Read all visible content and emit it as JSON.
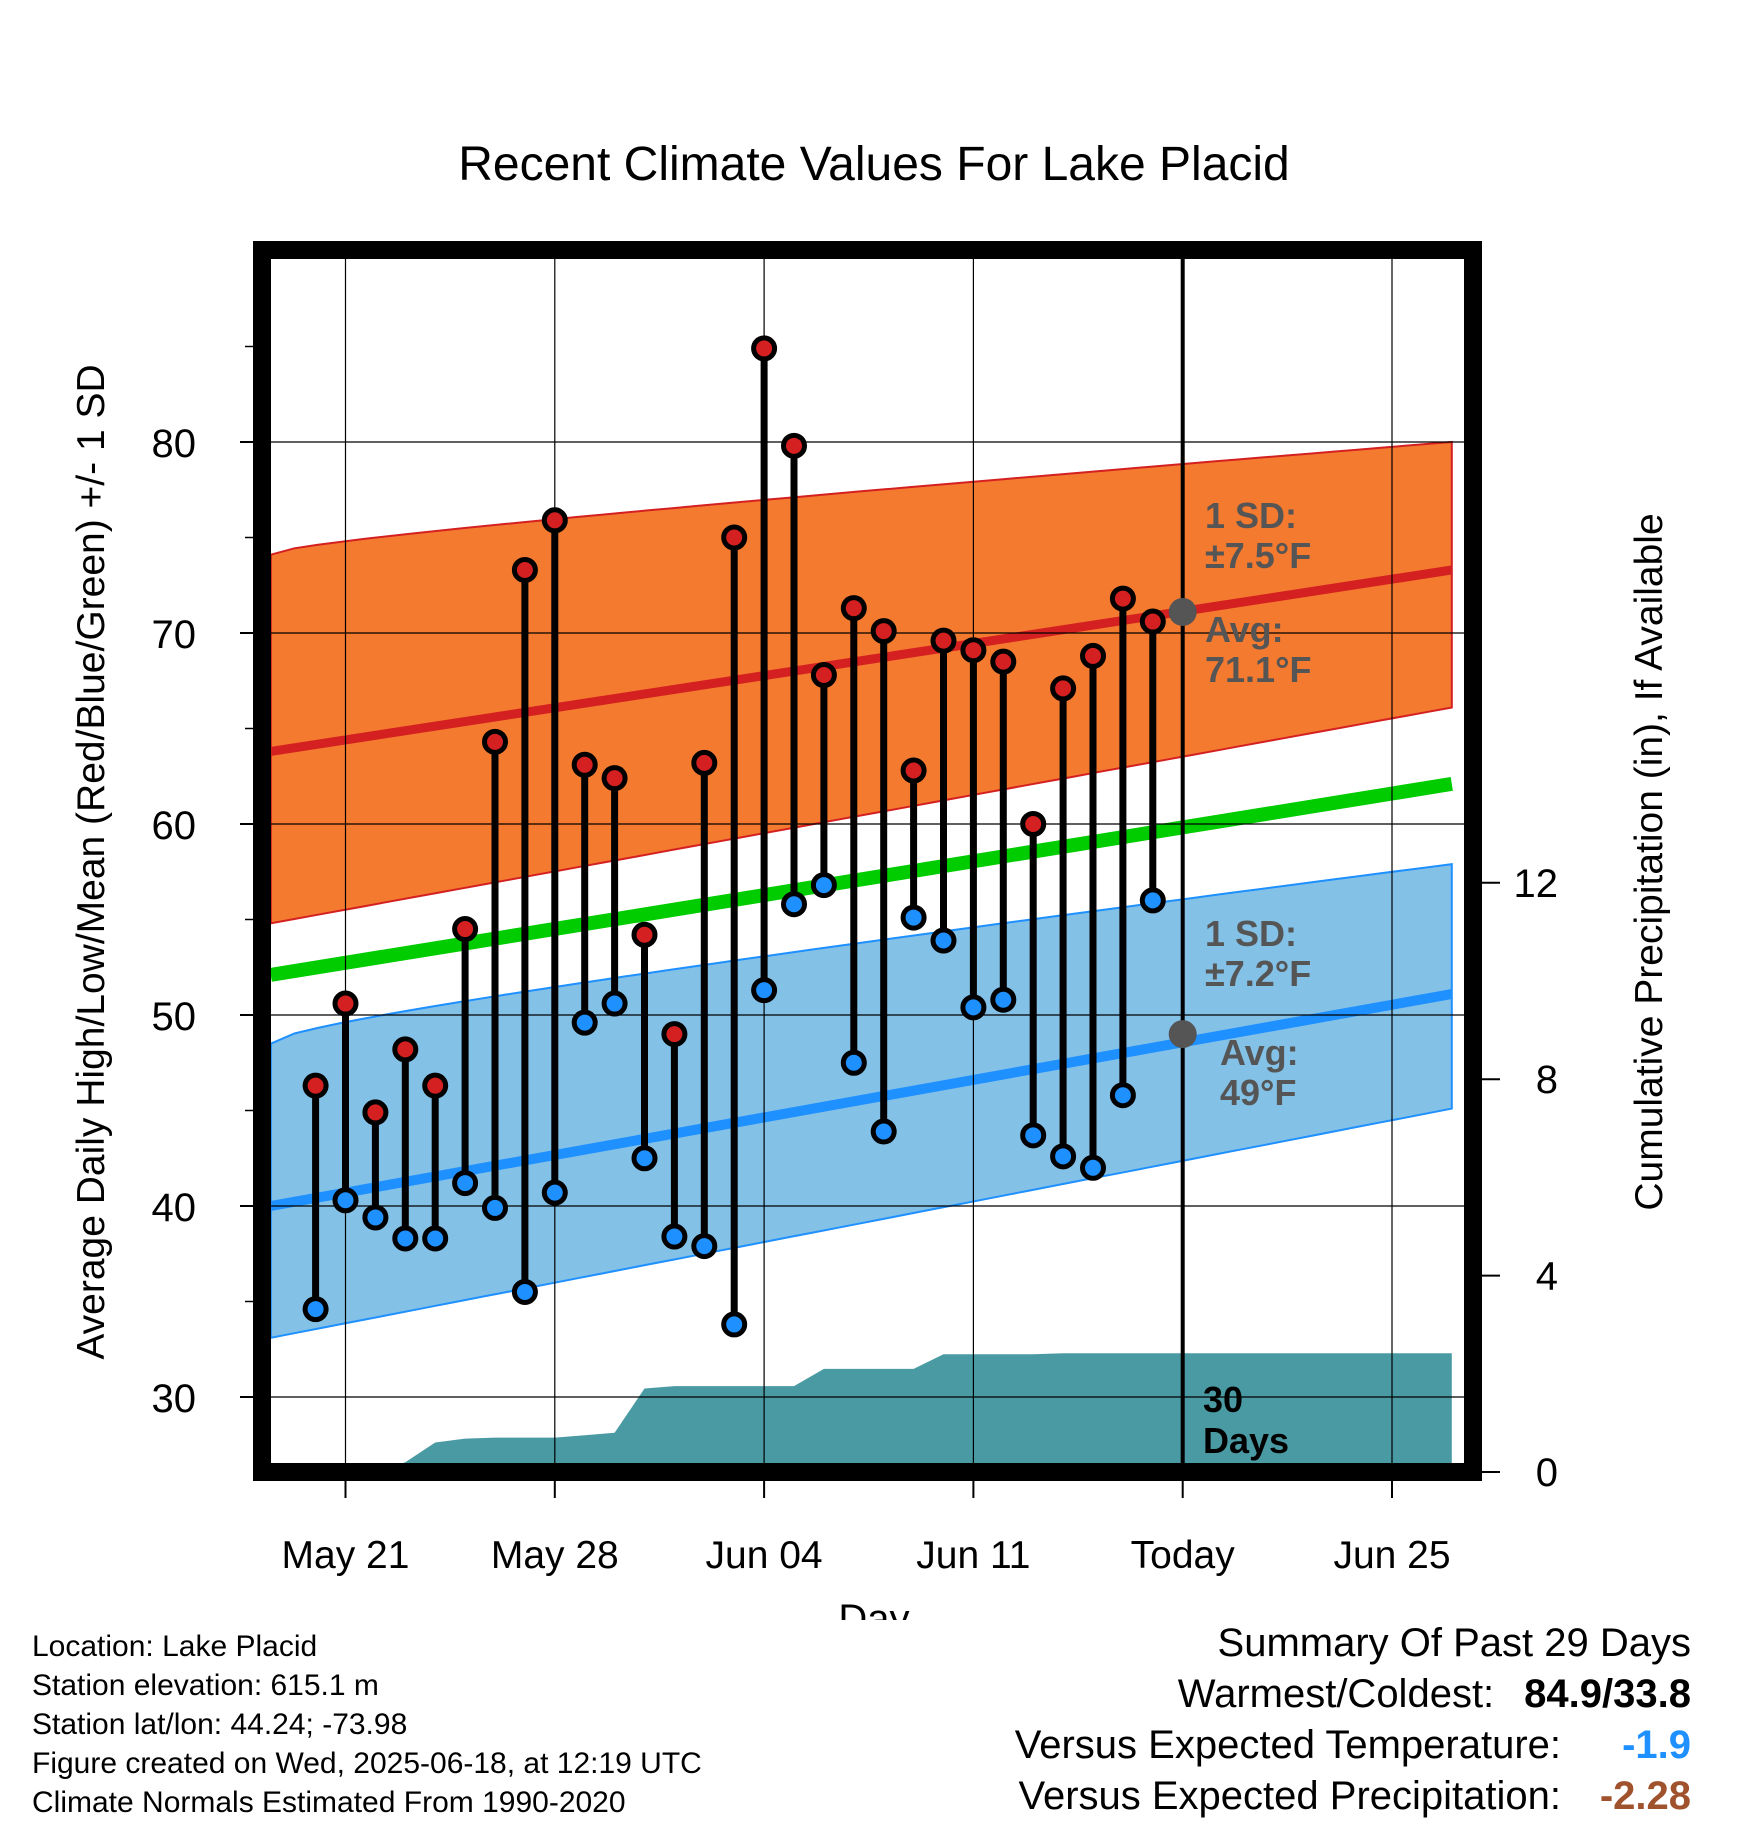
{
  "chart_data": {
    "type": "line",
    "title": "Recent Climate Values For Lake Placid",
    "xlabel": "Day",
    "ylabel": "Average Daily High/Low/Mean (Red/Blue/Green) +/- 1 SD",
    "y2label": "Cumulative Precipitation (in), If Available",
    "x_tick_labels": [
      "May 21",
      "May 28",
      "Jun 04",
      "Jun 11",
      "Today",
      "Jun 25"
    ],
    "x_tick_days": [
      2,
      9,
      16,
      23,
      30,
      37
    ],
    "xlim": [
      -0.5,
      39
    ],
    "ylim": [
      26,
      91
    ],
    "y_ticks": [
      30,
      40,
      50,
      60,
      70,
      80
    ],
    "y2lim": [
      0,
      30
    ],
    "y2_ticks": [
      0,
      4,
      8,
      12
    ],
    "grid": true,
    "daily_obs": {
      "day": [
        1,
        2,
        3,
        4,
        5,
        6,
        7,
        8,
        9,
        10,
        11,
        12,
        13,
        14,
        15,
        16,
        17,
        18,
        19,
        20,
        21,
        22,
        23,
        24,
        25,
        26,
        27,
        28,
        29
      ],
      "high": [
        46.3,
        50.6,
        44.9,
        48.2,
        46.3,
        54.5,
        64.3,
        73.3,
        75.9,
        63.1,
        62.4,
        54.2,
        49.0,
        63.2,
        75.0,
        84.9,
        79.8,
        67.8,
        71.3,
        70.1,
        62.8,
        69.6,
        69.1,
        68.5,
        60.0,
        67.1,
        68.8,
        71.8,
        70.6
      ],
      "low": [
        34.6,
        40.3,
        39.4,
        38.3,
        38.3,
        41.2,
        39.9,
        35.5,
        40.7,
        49.6,
        50.6,
        42.5,
        38.4,
        37.9,
        33.8,
        51.3,
        55.8,
        56.8,
        47.5,
        43.9,
        55.1,
        53.9,
        50.4,
        50.8,
        43.7,
        42.6,
        42.0,
        45.8,
        56.0
      ]
    },
    "series": [
      {
        "name": "Average High",
        "color": "#d42020",
        "x": [
          -0.5,
          39
        ],
        "y": [
          63.8,
          73.3
        ]
      },
      {
        "name": "Average Mean",
        "color": "#00cc00",
        "x": [
          -0.5,
          39
        ],
        "y": [
          52.1,
          62.1
        ]
      },
      {
        "name": "Average Low",
        "color": "#1e90ff",
        "x": [
          -0.5,
          39
        ],
        "y": [
          40.0,
          51.1
        ]
      }
    ],
    "bands": [
      {
        "name": "High +/- 1 SD",
        "color": "#f47a2f",
        "upper": [
          74.1,
          80.0
        ],
        "lower": [
          54.8,
          66.1
        ]
      },
      {
        "name": "Low +/- 1 SD",
        "color": "#84c1e7",
        "upper": [
          48.5,
          57.9
        ],
        "lower": [
          33.1,
          45.1
        ]
      }
    ],
    "precipitation": {
      "color": "#4a9aa4",
      "day": [
        -0.5,
        1,
        2,
        3,
        4,
        5,
        6,
        7,
        8,
        9,
        10,
        11,
        12,
        13,
        14,
        15,
        16,
        17,
        18,
        19,
        20,
        21,
        22,
        23,
        24,
        25,
        26,
        27,
        28,
        29,
        30,
        31,
        32,
        33,
        34,
        35,
        36,
        37,
        38,
        39
      ],
      "cumulative": [
        0,
        0,
        0,
        0,
        0.2,
        0.6,
        0.68,
        0.7,
        0.7,
        0.7,
        0.75,
        0.8,
        1.7,
        1.75,
        1.75,
        1.75,
        1.75,
        1.75,
        2.1,
        2.1,
        2.1,
        2.1,
        2.4,
        2.4,
        2.4,
        2.4,
        2.42,
        2.42,
        2.42,
        2.42,
        2.42,
        2.42,
        2.42,
        2.42,
        2.42,
        2.42,
        2.42,
        2.42,
        2.42,
        2.42
      ]
    },
    "annotations": {
      "high_sd_label": "1 SD:",
      "high_sd_value": "±7.5°F",
      "high_avg_label": "Avg:",
      "high_avg_value": "71.1°F",
      "low_sd_label": "1 SD:",
      "low_sd_value": "±7.2°F",
      "low_avg_label": "Avg:",
      "low_avg_value": "49°F",
      "today_high_avg": 71.1,
      "today_low_avg": 49.0,
      "today_day": 30,
      "precip_days_label_1": "30",
      "precip_days_label_2": "Days"
    }
  },
  "station": {
    "location": "Location: Lake Placid",
    "elevation": "Station elevation: 615.1 m",
    "latlon": "Station lat/lon: 44.24; -73.98",
    "created": "Figure created on Wed, 2025-06-18, at 12:19 UTC",
    "normals": "Climate Normals Estimated From 1990-2020"
  },
  "summary": {
    "title": "Summary Of Past 29 Days",
    "warmest_label": "Warmest/Coldest:",
    "warmest_value": "84.9/33.8",
    "temp_label": "Versus Expected Temperature:",
    "temp_value": "-1.9",
    "temp_color": "#1e90ff",
    "precip_label": "Versus Expected Precipitation:",
    "precip_value": "-2.28",
    "precip_color": "#a0522d"
  }
}
